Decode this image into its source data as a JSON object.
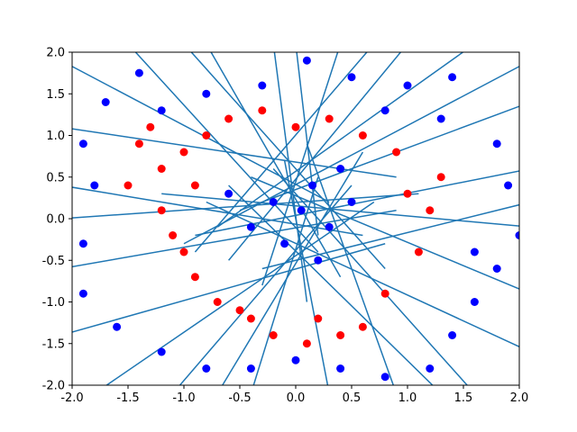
{
  "chart_data": {
    "type": "scatter",
    "title": "",
    "xlabel": "",
    "ylabel": "",
    "xlim": [
      -2.0,
      2.0
    ],
    "ylim": [
      -2.0,
      2.0
    ],
    "xticks": [
      "-2.0",
      "-1.5",
      "-1.0",
      "-0.5",
      "0.0",
      "0.5",
      "1.0",
      "1.5",
      "2.0"
    ],
    "yticks": [
      "-2.0",
      "-1.5",
      "-1.0",
      "-0.5",
      "0.0",
      "0.5",
      "1.0",
      "1.5",
      "2.0"
    ],
    "grid": false,
    "legend": "none",
    "colors": {
      "red_points": "#ff0000",
      "blue_points": "#0000ff",
      "lines": "#1f77b4"
    },
    "description": "",
    "red_points": [
      [
        -1.3,
        1.1
      ],
      [
        -1.4,
        0.9
      ],
      [
        -1.2,
        0.6
      ],
      [
        -1.5,
        0.4
      ],
      [
        -1.2,
        0.1
      ],
      [
        -1.0,
        0.8
      ],
      [
        -0.9,
        0.4
      ],
      [
        -1.1,
        -0.2
      ],
      [
        -0.9,
        -0.7
      ],
      [
        -0.7,
        -1.0
      ],
      [
        -0.4,
        -1.2
      ],
      [
        -0.2,
        -1.4
      ],
      [
        0.1,
        -1.5
      ],
      [
        0.4,
        -1.4
      ],
      [
        0.6,
        -1.3
      ],
      [
        0.8,
        -0.9
      ],
      [
        1.1,
        -0.4
      ],
      [
        1.2,
        0.1
      ],
      [
        1.3,
        0.5
      ],
      [
        0.9,
        0.8
      ],
      [
        0.6,
        1.0
      ],
      [
        0.3,
        1.2
      ],
      [
        0.0,
        1.1
      ],
      [
        -0.3,
        1.3
      ],
      [
        -0.6,
        1.2
      ],
      [
        -0.8,
        1.0
      ],
      [
        0.2,
        -1.2
      ],
      [
        -0.5,
        -1.1
      ],
      [
        1.0,
        0.3
      ],
      [
        -1.0,
        -0.4
      ]
    ],
    "blue_points": [
      [
        0.15,
        0.4
      ],
      [
        -0.2,
        0.2
      ],
      [
        0.3,
        -0.1
      ],
      [
        -0.1,
        -0.3
      ],
      [
        0.5,
        0.2
      ],
      [
        -0.4,
        -0.1
      ],
      [
        0.05,
        0.1
      ],
      [
        0.4,
        0.6
      ],
      [
        -0.6,
        0.3
      ],
      [
        0.2,
        -0.5
      ],
      [
        -1.7,
        1.4
      ],
      [
        -1.4,
        1.75
      ],
      [
        -0.8,
        1.5
      ],
      [
        -0.3,
        1.6
      ],
      [
        0.1,
        1.9
      ],
      [
        0.5,
        1.7
      ],
      [
        1.0,
        1.6
      ],
      [
        1.4,
        1.7
      ],
      [
        1.8,
        0.9
      ],
      [
        1.9,
        0.4
      ],
      [
        2.0,
        -0.2
      ],
      [
        1.8,
        -0.6
      ],
      [
        1.6,
        -1.0
      ],
      [
        1.4,
        -1.4
      ],
      [
        1.2,
        -1.8
      ],
      [
        0.8,
        -1.9
      ],
      [
        0.4,
        -1.8
      ],
      [
        0.0,
        -1.7
      ],
      [
        -0.4,
        -1.8
      ],
      [
        -0.8,
        -1.8
      ],
      [
        -1.2,
        -1.6
      ],
      [
        -1.6,
        -1.3
      ],
      [
        -1.9,
        -0.9
      ],
      [
        -1.9,
        -0.3
      ],
      [
        -1.8,
        0.4
      ],
      [
        -1.9,
        0.9
      ],
      [
        -1.2,
        1.3
      ],
      [
        0.8,
        1.3
      ],
      [
        1.3,
        1.2
      ],
      [
        1.6,
        -0.4
      ]
    ],
    "line_segments": [
      [
        -2.1,
        1.9,
        0.3,
        0.2
      ],
      [
        -2.1,
        0.4,
        0.6,
        -0.2
      ],
      [
        -2.1,
        -0.6,
        0.9,
        0.1
      ],
      [
        -1.5,
        2.1,
        0.2,
        -0.4
      ],
      [
        -0.8,
        2.1,
        0.4,
        -0.7
      ],
      [
        -0.2,
        2.1,
        0.1,
        -1.0
      ],
      [
        0.4,
        2.1,
        -0.3,
        -0.8
      ],
      [
        1.0,
        2.1,
        -0.6,
        -0.5
      ],
      [
        1.6,
        2.1,
        -0.7,
        -0.1
      ],
      [
        2.1,
        1.4,
        -0.5,
        0.1
      ],
      [
        2.1,
        0.6,
        -0.9,
        -0.2
      ],
      [
        2.1,
        -0.1,
        -1.2,
        0.3
      ],
      [
        2.1,
        -0.9,
        -0.4,
        0.5
      ],
      [
        1.6,
        -2.1,
        -0.2,
        0.6
      ],
      [
        0.9,
        -2.1,
        0.1,
        0.9
      ],
      [
        0.3,
        -2.1,
        -0.1,
        0.7
      ],
      [
        -0.4,
        -2.1,
        0.2,
        0.5
      ],
      [
        -1.1,
        -2.1,
        0.5,
        0.4
      ],
      [
        -1.8,
        -2.1,
        0.7,
        0.2
      ],
      [
        -2.1,
        -1.4,
        0.8,
        -0.3
      ],
      [
        -2.1,
        1.1,
        0.9,
        0.5
      ],
      [
        -1.0,
        2.1,
        0.8,
        -0.6
      ],
      [
        0.7,
        2.1,
        -0.9,
        -0.4
      ],
      [
        2.1,
        1.9,
        -1.0,
        -0.3
      ],
      [
        2.1,
        -1.6,
        -0.8,
        0.2
      ],
      [
        -0.7,
        -2.1,
        0.6,
        0.8
      ],
      [
        1.3,
        -2.1,
        -0.6,
        0.4
      ],
      [
        -2.1,
        0.0,
        1.1,
        0.3
      ],
      [
        0.0,
        2.1,
        0.2,
        -0.2
      ],
      [
        2.1,
        0.2,
        -0.3,
        -0.6
      ]
    ]
  }
}
